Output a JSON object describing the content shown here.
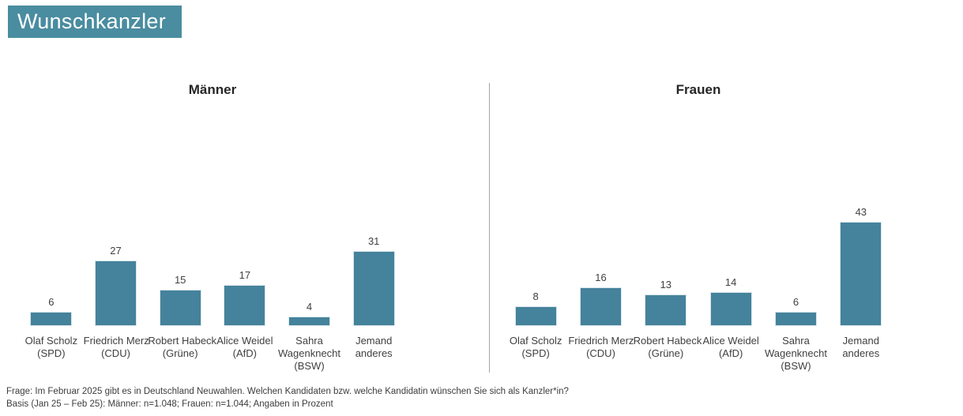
{
  "header": {
    "title": "Wunschkanzler"
  },
  "chart_data": [
    {
      "type": "bar",
      "title": "Männer",
      "categories": [
        [
          "Olaf Scholz",
          "(SPD)"
        ],
        [
          "Friedrich Merz",
          "(CDU)"
        ],
        [
          "Robert Habeck",
          "(Grüne)"
        ],
        [
          "Alice Weidel",
          "(AfD)"
        ],
        [
          "Sahra",
          "Wagenknecht",
          "(BSW)"
        ],
        [
          "Jemand",
          "anderes"
        ]
      ],
      "values": [
        6,
        27,
        15,
        17,
        4,
        31
      ],
      "ylabel": "Prozent",
      "ylim": [
        0,
        50
      ],
      "grid": "off",
      "legend": "none"
    },
    {
      "type": "bar",
      "title": "Frauen",
      "categories": [
        [
          "Olaf Scholz",
          "(SPD)"
        ],
        [
          "Friedrich Merz",
          "(CDU)"
        ],
        [
          "Robert Habeck",
          "(Grüne)"
        ],
        [
          "Alice Weidel",
          "(AfD)"
        ],
        [
          "Sahra",
          "Wagenknecht",
          "(BSW)"
        ],
        [
          "Jemand",
          "anderes"
        ]
      ],
      "values": [
        8,
        16,
        13,
        14,
        6,
        43
      ],
      "ylabel": "Prozent",
      "ylim": [
        0,
        50
      ],
      "grid": "off",
      "legend": "none"
    }
  ],
  "footer": {
    "line1": "Frage: Im Februar 2025 gibt es in Deutschland Neuwahlen. Welchen Kandidaten bzw. welche Kandidatin wünschen Sie sich als Kanzler*in?",
    "line2": "Basis (Jan 25 – Feb 25): Männer:  n=1.048; Frauen: n=1.044; Angaben  in Prozent"
  },
  "colors": {
    "bar": "#45829B",
    "bar_border": "#d8e6ec",
    "header_bg": "#4A8CA0",
    "header_text": "#ffffff",
    "divider": "#a6a6a6",
    "text": "#404040"
  }
}
